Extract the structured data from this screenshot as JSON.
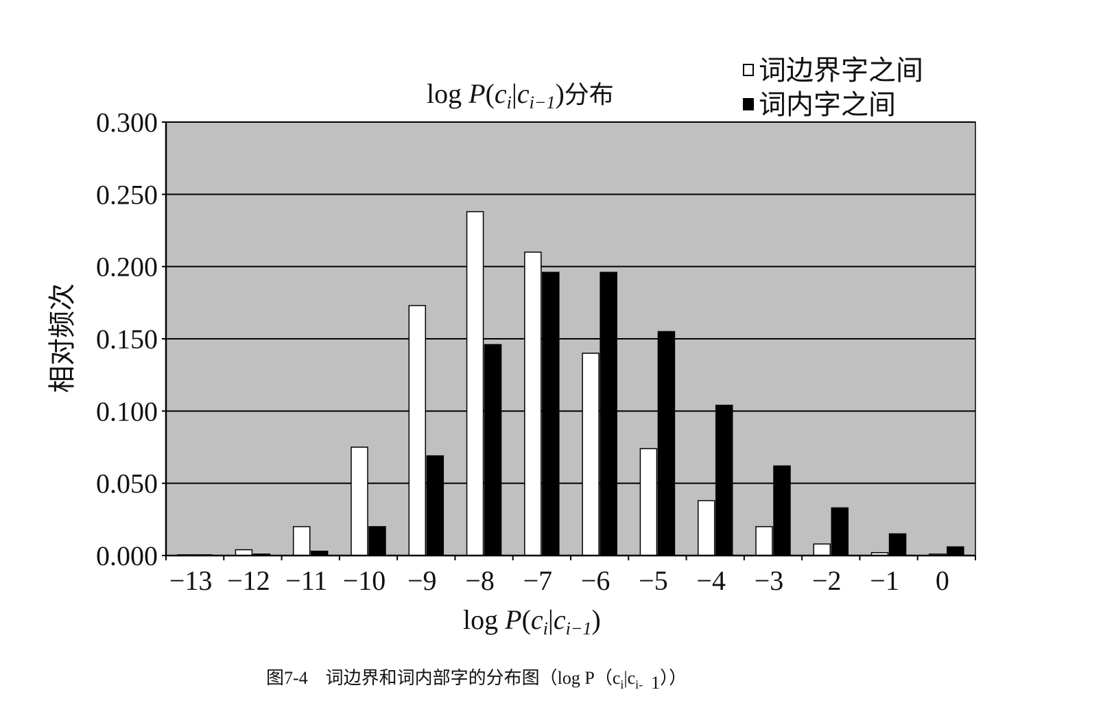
{
  "chart_data": {
    "type": "bar",
    "title": "log P(c_i|c_{i−1})分布",
    "title_parts": {
      "main": "log ",
      "p": "P",
      "open": "(",
      "c1": "c",
      "sub1": "i",
      "bar": "|",
      "c2": "c",
      "sub2": "i−1",
      "close": ")",
      "suffix": "分布"
    },
    "xlabel": "log P(c_i|c_{i−1})",
    "xlabel_parts": {
      "main": "log ",
      "p": "P",
      "open": "(",
      "c1": "c",
      "sub1": "i",
      "bar": "|",
      "c2": "c",
      "sub2": "i−1",
      "close": ")"
    },
    "ylabel": "相对频次",
    "ylim": [
      0,
      0.3
    ],
    "yticks": [
      "0.000",
      "0.050",
      "0.100",
      "0.150",
      "0.200",
      "0.250",
      "0.300"
    ],
    "grid": true,
    "legend_position": "top-right",
    "categories": [
      "−13",
      "−12",
      "−11",
      "−10",
      "−9",
      "−8",
      "−7",
      "−6",
      "−5",
      "−4",
      "−3",
      "−2",
      "−1",
      "0"
    ],
    "series": [
      {
        "name": "词边界字之间",
        "color": "#ffffff",
        "values": [
          0.0005,
          0.004,
          0.02,
          0.075,
          0.173,
          0.238,
          0.21,
          0.14,
          0.074,
          0.038,
          0.02,
          0.008,
          0.002,
          0.001
        ]
      },
      {
        "name": "词内字之间",
        "color": "#000000",
        "values": [
          0.0005,
          0.001,
          0.003,
          0.02,
          0.069,
          0.146,
          0.196,
          0.196,
          0.155,
          0.104,
          0.062,
          0.033,
          0.015,
          0.006
        ]
      }
    ]
  },
  "caption": "图7-4　词边界和词内部字的分布图（log P（c_i|c_i- 1））",
  "caption_parts": {
    "a": "图7-4　词边界和词内部字的分布图（log P（c",
    "sub1": "i",
    "b": "|c",
    "sub2": "i-",
    "c": "1",
    "d": "））"
  },
  "colors": {
    "plot_background": "#c0c0c0",
    "grid": "#000000",
    "white_bar": "#ffffff",
    "black_bar": "#000000"
  }
}
